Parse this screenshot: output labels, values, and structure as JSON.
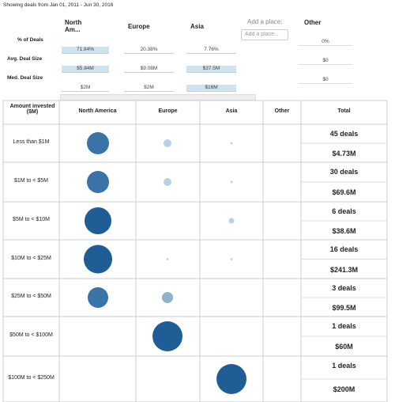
{
  "header": {
    "range_text": "Showing deals from Jan 01, 2011 - Jun 30, 2016"
  },
  "summary": {
    "columns": [
      "North Am...",
      "Europe",
      "Asia",
      "Other"
    ],
    "add_place_label": "Add a place:",
    "add_place_placeholder": "Add a place...",
    "rows": [
      {
        "label": "% of Deals",
        "cells": [
          "71.84%",
          "20.38%",
          "7.76%",
          "0%"
        ]
      },
      {
        "label": "Avg. Deal Size",
        "cells": [
          "$5.84M",
          "$9.08M",
          "$37.5M",
          "$0"
        ]
      },
      {
        "label": "Med. Deal Size",
        "cells": [
          "$2M",
          "$2M",
          "$16M",
          "$0"
        ]
      }
    ]
  },
  "table": {
    "headers": [
      "Amount invested ($M)",
      "North America",
      "Europe",
      "Asia",
      "Other",
      "Total"
    ],
    "rows": [
      {
        "label": "Less than $1M",
        "bubbles": [
          196,
          25,
          2,
          null
        ],
        "deals": "45 deals",
        "amount": "$4.73M"
      },
      {
        "label": "$1M to < $5M",
        "bubbles": [
          196,
          25,
          2,
          null
        ],
        "deals": "30 deals",
        "amount": "$69.6M"
      },
      {
        "label": "$5M to < $10M",
        "bubbles": [
          289,
          null,
          12,
          null
        ],
        "deals": "6 deals",
        "amount": "$38.6M"
      },
      {
        "label": "$10M to < $25M",
        "bubbles": [
          324,
          2,
          2,
          null
        ],
        "deals": "16 deals",
        "amount": "$241.3M"
      },
      {
        "label": "$25M to < $50M",
        "bubbles": [
          169,
          49,
          null,
          null
        ],
        "deals": "3 deals",
        "amount": "$99.5M"
      },
      {
        "label": "$50M to < $100M",
        "bubbles": [
          null,
          361,
          null,
          null
        ],
        "deals": "1 deals",
        "amount": "$60M"
      },
      {
        "label": "$100M to < $250M",
        "bubbles": [
          null,
          null,
          361,
          null
        ],
        "deals": "1 deals",
        "amount": "$200M"
      }
    ]
  }
}
